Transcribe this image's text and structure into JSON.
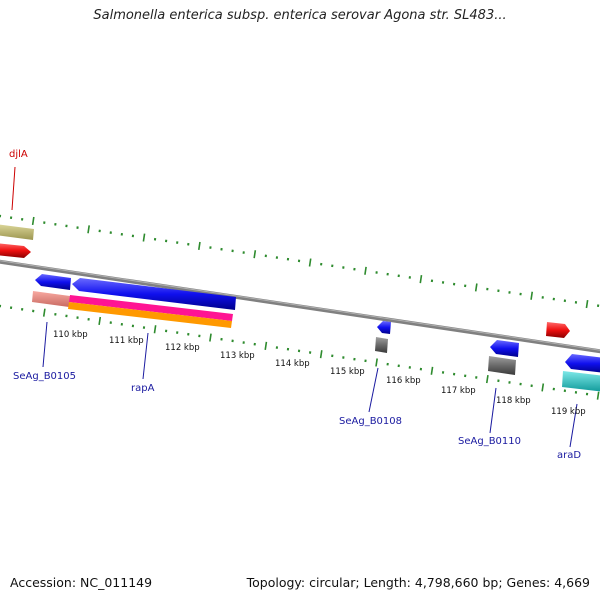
{
  "title": "Salmonella enterica subsp. enterica serovar Agona str. SL483...",
  "footer": {
    "accession": "Accession: NC_011149",
    "summary": "Topology: circular; Length: 4,798,660 bp; Genes: 4,669"
  },
  "ruler": {
    "kbp_labels": [
      "110 kbp",
      "111 kbp",
      "112 kbp",
      "113 kbp",
      "114 kbp",
      "115 kbp",
      "116 kbp",
      "117 kbp",
      "118 kbp",
      "119 kbp"
    ]
  },
  "genes": {
    "djlA": "djlA",
    "seag_b0105": "SeAg_B0105",
    "rapA": "rapA",
    "seag_b0108": "SeAg_B0108",
    "seag_b0110": "SeAg_B0110",
    "araD": "araD"
  },
  "colors": {
    "forward_cds": "#1010ee",
    "reverse_cds": "#ee1010",
    "gene_label_red": "#cc0000",
    "gene_label_blue": "#1a1aa0",
    "ruler_ticks": "#2e8b2e",
    "backbone": "#808080",
    "khaki": "#c8c27a",
    "salmon": "#f08a80",
    "magenta": "#ff1493",
    "orange": "#ff9900",
    "cyan": "#20c8c8",
    "gray_feature": "#707070"
  }
}
